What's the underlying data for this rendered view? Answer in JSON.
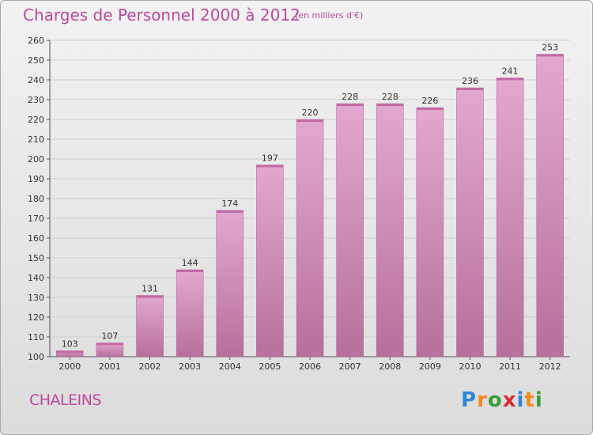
{
  "header": {
    "title": "Charges de Personnel 2000 à 2012",
    "subtitle": "(en milliers d'€)"
  },
  "commune": "CHALEINS",
  "logo": {
    "text": "Proxiti",
    "letters": [
      {
        "ch": "P",
        "color": "#2f86d1"
      },
      {
        "ch": "r",
        "color": "#f08a1c"
      },
      {
        "ch": "o",
        "color": "#3a9e3a"
      },
      {
        "ch": "x",
        "color": "#d62d2d"
      },
      {
        "ch": "i",
        "color": "#2f86d1"
      },
      {
        "ch": "t",
        "color": "#f08a1c"
      },
      {
        "ch": "i",
        "color": "#3a9e3a"
      }
    ]
  },
  "colors": {
    "bar_top": "#e3a8cf",
    "bar_bottom": "#b76f9c",
    "accent": "#c0479f",
    "grid": "#cfcfcf",
    "axis": "#555555"
  },
  "chart_data": {
    "type": "bar",
    "title": "Charges de Personnel 2000 à 2012",
    "subtitle": "(en milliers d'€)",
    "categories": [
      "2000",
      "2001",
      "2002",
      "2003",
      "2004",
      "2005",
      "2006",
      "2007",
      "2008",
      "2009",
      "2010",
      "2011",
      "2012"
    ],
    "values": [
      103,
      107,
      131,
      144,
      174,
      197,
      220,
      228,
      228,
      226,
      236,
      241,
      253
    ],
    "ylim": [
      100,
      260
    ],
    "ytick_step": 10,
    "grid": true,
    "xlabel": "",
    "ylabel": ""
  }
}
